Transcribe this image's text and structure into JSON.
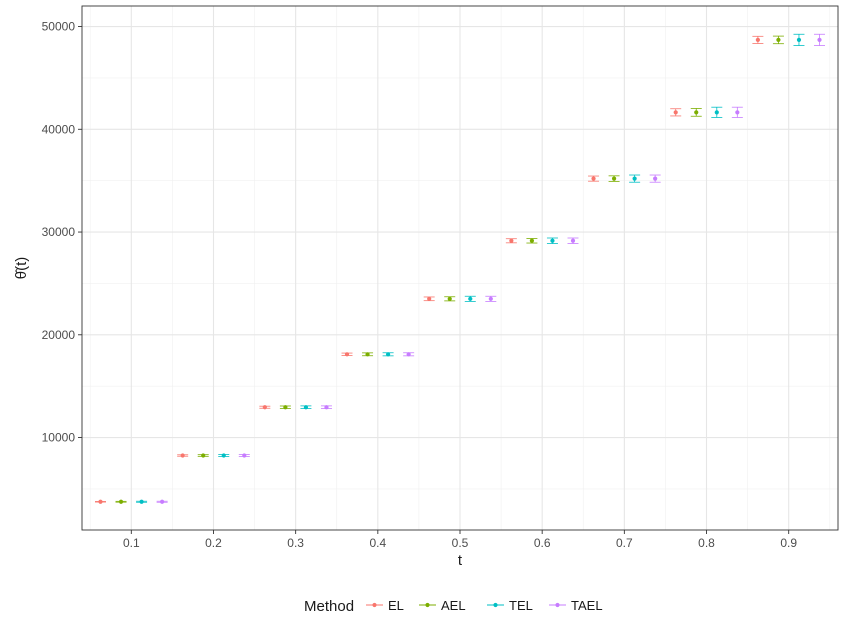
{
  "chart_data": {
    "type": "scatter",
    "title": "",
    "xlabel": "t",
    "ylabel": "θ̂(t)",
    "xlim": [
      0.04,
      0.96
    ],
    "ylim": [
      1000,
      52000
    ],
    "xticks": [
      0.1,
      0.2,
      0.3,
      0.4,
      0.5,
      0.6,
      0.7,
      0.8,
      0.9
    ],
    "xtick_labels": [
      "0.1",
      "0.2",
      "0.3",
      "0.4",
      "0.5",
      "0.6",
      "0.7",
      "0.8",
      "0.9"
    ],
    "yticks": [
      10000,
      20000,
      30000,
      40000,
      50000
    ],
    "ytick_labels": [
      "10000",
      "20000",
      "30000",
      "40000",
      "50000"
    ],
    "grid": true,
    "legend": {
      "title": "Method",
      "position": "bottom"
    },
    "series": [
      {
        "name": "EL",
        "color": "#F8766D",
        "x": [
          0.0625,
          0.1625,
          0.2625,
          0.3625,
          0.4625,
          0.5625,
          0.6625,
          0.7625,
          0.8625
        ],
        "y": [
          3750,
          8250,
          12950,
          18100,
          23500,
          29150,
          35200,
          41650,
          48700
        ],
        "lower": [
          3720,
          8180,
          12850,
          17980,
          23320,
          28950,
          34950,
          41300,
          48350
        ],
        "upper": [
          3780,
          8320,
          13050,
          18220,
          23680,
          29350,
          35450,
          42000,
          49050
        ]
      },
      {
        "name": "AEL",
        "color": "#7CAE00",
        "x": [
          0.0875,
          0.1875,
          0.2875,
          0.3875,
          0.4875,
          0.5875,
          0.6875,
          0.7875,
          0.8875
        ],
        "y": [
          3750,
          8250,
          12950,
          18100,
          23500,
          29150,
          35200,
          41650,
          48700
        ],
        "lower": [
          3710,
          8170,
          12830,
          17960,
          23300,
          28930,
          34930,
          41270,
          48330
        ],
        "upper": [
          3790,
          8330,
          13070,
          18240,
          23700,
          29370,
          35470,
          42030,
          49070
        ]
      },
      {
        "name": "TEL",
        "color": "#00BFC4",
        "x": [
          0.1125,
          0.2125,
          0.3125,
          0.4125,
          0.5125,
          0.6125,
          0.7125,
          0.8125,
          0.9125
        ],
        "y": [
          3750,
          8250,
          12950,
          18100,
          23500,
          29150,
          35200,
          41650,
          48700
        ],
        "lower": [
          3700,
          8160,
          12820,
          17950,
          23250,
          28880,
          34850,
          41150,
          48150
        ],
        "upper": [
          3800,
          8340,
          13080,
          18250,
          23750,
          29420,
          35550,
          42150,
          49250
        ]
      },
      {
        "name": "TAEL",
        "color": "#C77CFF",
        "x": [
          0.1375,
          0.2375,
          0.3375,
          0.4375,
          0.5375,
          0.6375,
          0.7375,
          0.8375,
          0.9375
        ],
        "y": [
          3750,
          8250,
          12950,
          18100,
          23500,
          29150,
          35200,
          41650,
          48700
        ],
        "lower": [
          3700,
          8160,
          12820,
          17950,
          23250,
          28880,
          34850,
          41150,
          48150
        ],
        "upper": [
          3800,
          8340,
          13080,
          18250,
          23750,
          29420,
          35550,
          42150,
          49250
        ]
      }
    ]
  }
}
